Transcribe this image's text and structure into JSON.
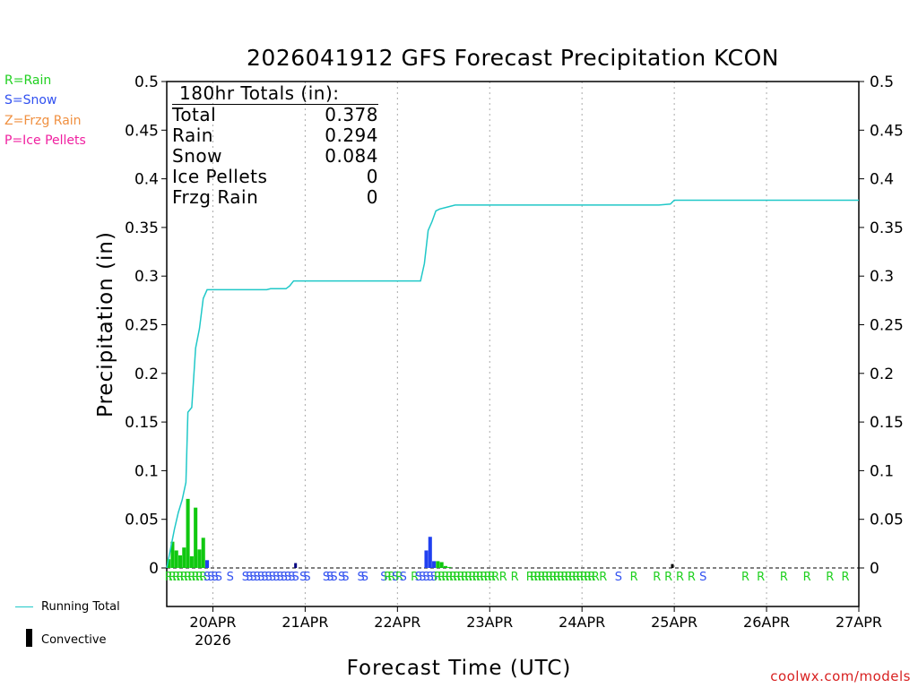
{
  "title": "2026041912 GFS Forecast Precipitation KCON",
  "legend": [
    {
      "label": "R=Rain",
      "color": "#20d020"
    },
    {
      "label": "S=Snow",
      "color": "#3050f0"
    },
    {
      "label": "Z=Frzg Rain",
      "color": "#f09040"
    },
    {
      "label": "P=Ice Pellets",
      "color": "#f020a0"
    }
  ],
  "totals": {
    "header": "180hr Totals (in):",
    "rows": [
      {
        "label": "Total",
        "value": "0.378"
      },
      {
        "label": "Rain",
        "value": "0.294"
      },
      {
        "label": "Snow",
        "value": "0.084"
      },
      {
        "label": "Ice Pellets",
        "value": "0"
      },
      {
        "label": "Frzg Rain",
        "value": "0"
      }
    ]
  },
  "bottom_legend": {
    "running_total": "Running Total",
    "convective": "Convective"
  },
  "credit": "coolwx.com/models",
  "colors": {
    "rain": "#10c810",
    "snow": "#2040f0",
    "running": "#20c8c8",
    "convective": "#000000",
    "navy": "#000080"
  },
  "chart_data": {
    "type": "bar",
    "title": "2026041912 GFS Forecast Precipitation KCON",
    "xlabel": "Forecast Time (UTC)",
    "ylabel": "Precipitation (in)",
    "x_unit": "forecast hours from 2026-04-19 12Z",
    "xlim": [
      0,
      180
    ],
    "ylim": [
      0,
      0.5
    ],
    "yticks": [
      0,
      0.05,
      0.1,
      0.15,
      0.2,
      0.25,
      0.3,
      0.35,
      0.4,
      0.45,
      0.5
    ],
    "ytick_labels": [
      "0",
      "0.05",
      "0.1",
      "0.15",
      "0.2",
      "0.25",
      "0.3",
      "0.35",
      "0.4",
      "0.45",
      "0.5"
    ],
    "xticks": [
      {
        "hour": 12,
        "label": "20APR",
        "sublabel": "2026"
      },
      {
        "hour": 36,
        "label": "21APR"
      },
      {
        "hour": 60,
        "label": "22APR"
      },
      {
        "hour": 84,
        "label": "23APR"
      },
      {
        "hour": 108,
        "label": "24APR"
      },
      {
        "hour": 132,
        "label": "25APR"
      },
      {
        "hour": 156,
        "label": "26APR"
      },
      {
        "hour": 180,
        "label": "27APR"
      }
    ],
    "bars": [
      {
        "hour": 0.5,
        "value": 0.009,
        "type": "rain"
      },
      {
        "hour": 1.5,
        "value": 0.027,
        "type": "rain"
      },
      {
        "hour": 2.5,
        "value": 0.018,
        "type": "rain"
      },
      {
        "hour": 3.5,
        "value": 0.013,
        "type": "rain"
      },
      {
        "hour": 4.5,
        "value": 0.021,
        "type": "rain"
      },
      {
        "hour": 5.5,
        "value": 0.071,
        "type": "rain"
      },
      {
        "hour": 6.5,
        "value": 0.012,
        "type": "rain"
      },
      {
        "hour": 7.5,
        "value": 0.062,
        "type": "rain"
      },
      {
        "hour": 8.5,
        "value": 0.019,
        "type": "rain"
      },
      {
        "hour": 9.5,
        "value": 0.031,
        "type": "rain"
      },
      {
        "hour": 10.5,
        "value": 0.008,
        "type": "snow"
      },
      {
        "hour": 33.5,
        "value": 0.005,
        "type": "convective_snow"
      },
      {
        "hour": 67.5,
        "value": 0.018,
        "type": "snow"
      },
      {
        "hour": 68.5,
        "value": 0.032,
        "type": "snow"
      },
      {
        "hour": 69.5,
        "value": 0.007,
        "type": "snow"
      },
      {
        "hour": 70.5,
        "value": 0.007,
        "type": "rain"
      },
      {
        "hour": 71.5,
        "value": 0.006,
        "type": "rain"
      },
      {
        "hour": 72.5,
        "value": 0.002,
        "type": "rain"
      },
      {
        "hour": 73.5,
        "value": 0.001,
        "type": "rain"
      },
      {
        "hour": 131.5,
        "value": 0.004,
        "type": "convective"
      }
    ],
    "running_total": [
      [
        0,
        0
      ],
      [
        1,
        0.02
      ],
      [
        2,
        0.04
      ],
      [
        3,
        0.057
      ],
      [
        4,
        0.07
      ],
      [
        5,
        0.088
      ],
      [
        5.5,
        0.16
      ],
      [
        6.5,
        0.165
      ],
      [
        7.5,
        0.226
      ],
      [
        8.5,
        0.246
      ],
      [
        9.5,
        0.277
      ],
      [
        10.5,
        0.286
      ],
      [
        14,
        0.286
      ],
      [
        26,
        0.286
      ],
      [
        27,
        0.287
      ],
      [
        31,
        0.287
      ],
      [
        32,
        0.29
      ],
      [
        33,
        0.295
      ],
      [
        66,
        0.295
      ],
      [
        67,
        0.313
      ],
      [
        68,
        0.347
      ],
      [
        69,
        0.356
      ],
      [
        70,
        0.367
      ],
      [
        71,
        0.369
      ],
      [
        73,
        0.371
      ],
      [
        75,
        0.373
      ],
      [
        80,
        0.373
      ],
      [
        128,
        0.373
      ],
      [
        131,
        0.374
      ],
      [
        132,
        0.378
      ],
      [
        180,
        0.378
      ]
    ],
    "ptype_markers": [
      {
        "hour": 0.5,
        "type": "R"
      },
      {
        "hour": 1.5,
        "type": "R"
      },
      {
        "hour": 2.5,
        "type": "R"
      },
      {
        "hour": 3.5,
        "type": "R"
      },
      {
        "hour": 4.5,
        "type": "R"
      },
      {
        "hour": 5.5,
        "type": "R"
      },
      {
        "hour": 6.5,
        "type": "R"
      },
      {
        "hour": 7.5,
        "type": "R"
      },
      {
        "hour": 8.5,
        "type": "R"
      },
      {
        "hour": 9.5,
        "type": "R"
      },
      {
        "hour": 10.5,
        "type": "S"
      },
      {
        "hour": 11.5,
        "type": "S"
      },
      {
        "hour": 12.5,
        "type": "S"
      },
      {
        "hour": 13.5,
        "type": "S"
      },
      {
        "hour": 16.5,
        "type": "S"
      },
      {
        "hour": 20.5,
        "type": "S"
      },
      {
        "hour": 21.5,
        "type": "S"
      },
      {
        "hour": 22.5,
        "type": "S"
      },
      {
        "hour": 23.5,
        "type": "S"
      },
      {
        "hour": 24.5,
        "type": "S"
      },
      {
        "hour": 25.5,
        "type": "S"
      },
      {
        "hour": 26.5,
        "type": "S"
      },
      {
        "hour": 27.5,
        "type": "S"
      },
      {
        "hour": 28.5,
        "type": "S"
      },
      {
        "hour": 29.5,
        "type": "S"
      },
      {
        "hour": 30.5,
        "type": "S"
      },
      {
        "hour": 31.5,
        "type": "S"
      },
      {
        "hour": 32.5,
        "type": "S"
      },
      {
        "hour": 33.5,
        "type": "S"
      },
      {
        "hour": 35.5,
        "type": "S"
      },
      {
        "hour": 36.5,
        "type": "S"
      },
      {
        "hour": 41.5,
        "type": "S"
      },
      {
        "hour": 42.5,
        "type": "S"
      },
      {
        "hour": 43.5,
        "type": "S"
      },
      {
        "hour": 45.5,
        "type": "S"
      },
      {
        "hour": 46.5,
        "type": "S"
      },
      {
        "hour": 50.5,
        "type": "S"
      },
      {
        "hour": 51.5,
        "type": "S"
      },
      {
        "hour": 56.5,
        "type": "S"
      },
      {
        "hour": 57.5,
        "type": "R"
      },
      {
        "hour": 58.5,
        "type": "R"
      },
      {
        "hour": 59.5,
        "type": "S"
      },
      {
        "hour": 60.5,
        "type": "R"
      },
      {
        "hour": 61.5,
        "type": "S"
      },
      {
        "hour": 64.5,
        "type": "R"
      },
      {
        "hour": 65.5,
        "type": "S"
      },
      {
        "hour": 66.5,
        "type": "S"
      },
      {
        "hour": 67.5,
        "type": "S"
      },
      {
        "hour": 68.5,
        "type": "S"
      },
      {
        "hour": 69.5,
        "type": "S"
      },
      {
        "hour": 70.5,
        "type": "R"
      },
      {
        "hour": 71.5,
        "type": "R"
      },
      {
        "hour": 72.5,
        "type": "R"
      },
      {
        "hour": 73.5,
        "type": "R"
      },
      {
        "hour": 74.5,
        "type": "R"
      },
      {
        "hour": 75.5,
        "type": "R"
      },
      {
        "hour": 76.5,
        "type": "R"
      },
      {
        "hour": 77.5,
        "type": "R"
      },
      {
        "hour": 78.5,
        "type": "R"
      },
      {
        "hour": 79.5,
        "type": "R"
      },
      {
        "hour": 80.5,
        "type": "R"
      },
      {
        "hour": 81.5,
        "type": "R"
      },
      {
        "hour": 82.5,
        "type": "R"
      },
      {
        "hour": 83.5,
        "type": "R"
      },
      {
        "hour": 84.5,
        "type": "R"
      },
      {
        "hour": 85.5,
        "type": "R"
      },
      {
        "hour": 87.5,
        "type": "R"
      },
      {
        "hour": 90.5,
        "type": "R"
      },
      {
        "hour": 94.5,
        "type": "R"
      },
      {
        "hour": 95.5,
        "type": "R"
      },
      {
        "hour": 96.5,
        "type": "R"
      },
      {
        "hour": 97.5,
        "type": "R"
      },
      {
        "hour": 98.5,
        "type": "R"
      },
      {
        "hour": 99.5,
        "type": "R"
      },
      {
        "hour": 100.5,
        "type": "R"
      },
      {
        "hour": 101.5,
        "type": "R"
      },
      {
        "hour": 102.5,
        "type": "R"
      },
      {
        "hour": 103.5,
        "type": "R"
      },
      {
        "hour": 104.5,
        "type": "R"
      },
      {
        "hour": 105.5,
        "type": "R"
      },
      {
        "hour": 106.5,
        "type": "R"
      },
      {
        "hour": 107.5,
        "type": "R"
      },
      {
        "hour": 108.5,
        "type": "R"
      },
      {
        "hour": 109.5,
        "type": "R"
      },
      {
        "hour": 110.5,
        "type": "R"
      },
      {
        "hour": 111.5,
        "type": "R"
      },
      {
        "hour": 113.5,
        "type": "R"
      },
      {
        "hour": 117.5,
        "type": "S"
      },
      {
        "hour": 121.5,
        "type": "R"
      },
      {
        "hour": 127.5,
        "type": "R"
      },
      {
        "hour": 130.5,
        "type": "R"
      },
      {
        "hour": 133.5,
        "type": "R"
      },
      {
        "hour": 136.5,
        "type": "R"
      },
      {
        "hour": 139.5,
        "type": "S"
      },
      {
        "hour": 150.5,
        "type": "R"
      },
      {
        "hour": 154.5,
        "type": "R"
      },
      {
        "hour": 160.5,
        "type": "R"
      },
      {
        "hour": 166.5,
        "type": "R"
      },
      {
        "hour": 172.5,
        "type": "R"
      },
      {
        "hour": 176.5,
        "type": "R"
      }
    ]
  }
}
